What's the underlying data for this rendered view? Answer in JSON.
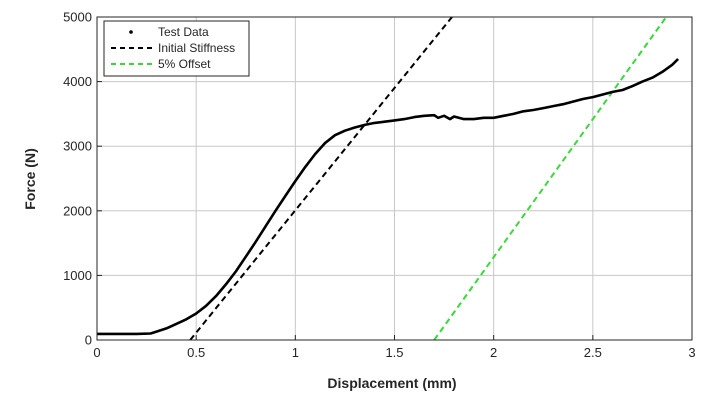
{
  "chart_data": {
    "type": "line",
    "title": "",
    "xlabel": "Displacement (mm)",
    "ylabel": "Force (N)",
    "xlim": [
      0,
      3
    ],
    "ylim": [
      0,
      5000
    ],
    "xticks": [
      0,
      0.5,
      1,
      1.5,
      2,
      2.5,
      3
    ],
    "xtick_labels": [
      "0",
      "0.5",
      "1",
      "1.5",
      "2",
      "2.5",
      "3"
    ],
    "yticks": [
      0,
      1000,
      2000,
      3000,
      4000,
      5000
    ],
    "ytick_labels": [
      "0",
      "1000",
      "2000",
      "3000",
      "4000",
      "5000"
    ],
    "grid": true,
    "legend_position": "top-left",
    "series": [
      {
        "name": "Test Data",
        "style": "solid",
        "color": "#000000",
        "x": [
          0,
          0.1,
          0.2,
          0.27,
          0.3,
          0.35,
          0.4,
          0.45,
          0.5,
          0.55,
          0.6,
          0.65,
          0.7,
          0.75,
          0.8,
          0.85,
          0.9,
          0.95,
          1.0,
          1.05,
          1.1,
          1.15,
          1.2,
          1.25,
          1.3,
          1.35,
          1.4,
          1.45,
          1.5,
          1.55,
          1.6,
          1.65,
          1.7,
          1.72,
          1.75,
          1.78,
          1.8,
          1.85,
          1.9,
          1.95,
          2.0,
          2.05,
          2.1,
          2.15,
          2.2,
          2.25,
          2.3,
          2.35,
          2.4,
          2.45,
          2.5,
          2.55,
          2.6,
          2.65,
          2.7,
          2.75,
          2.8,
          2.85,
          2.9,
          2.93
        ],
        "y": [
          95,
          95,
          95,
          100,
          130,
          180,
          250,
          320,
          410,
          530,
          680,
          860,
          1060,
          1290,
          1520,
          1760,
          2000,
          2230,
          2460,
          2680,
          2880,
          3050,
          3170,
          3240,
          3290,
          3330,
          3360,
          3380,
          3400,
          3420,
          3450,
          3470,
          3480,
          3440,
          3470,
          3420,
          3460,
          3420,
          3420,
          3440,
          3440,
          3470,
          3500,
          3540,
          3560,
          3590,
          3620,
          3650,
          3690,
          3730,
          3760,
          3800,
          3840,
          3870,
          3930,
          4000,
          4060,
          4150,
          4260,
          4350
        ]
      },
      {
        "name": "Initial Stiffness",
        "style": "dashed",
        "color": "#000000",
        "x": [
          0.47,
          1.79
        ],
        "y": [
          0,
          5000
        ]
      },
      {
        "name": "5% Offset",
        "style": "dashed",
        "color": "#33dd33",
        "x": [
          1.7,
          2.87
        ],
        "y": [
          0,
          5000
        ]
      }
    ]
  }
}
